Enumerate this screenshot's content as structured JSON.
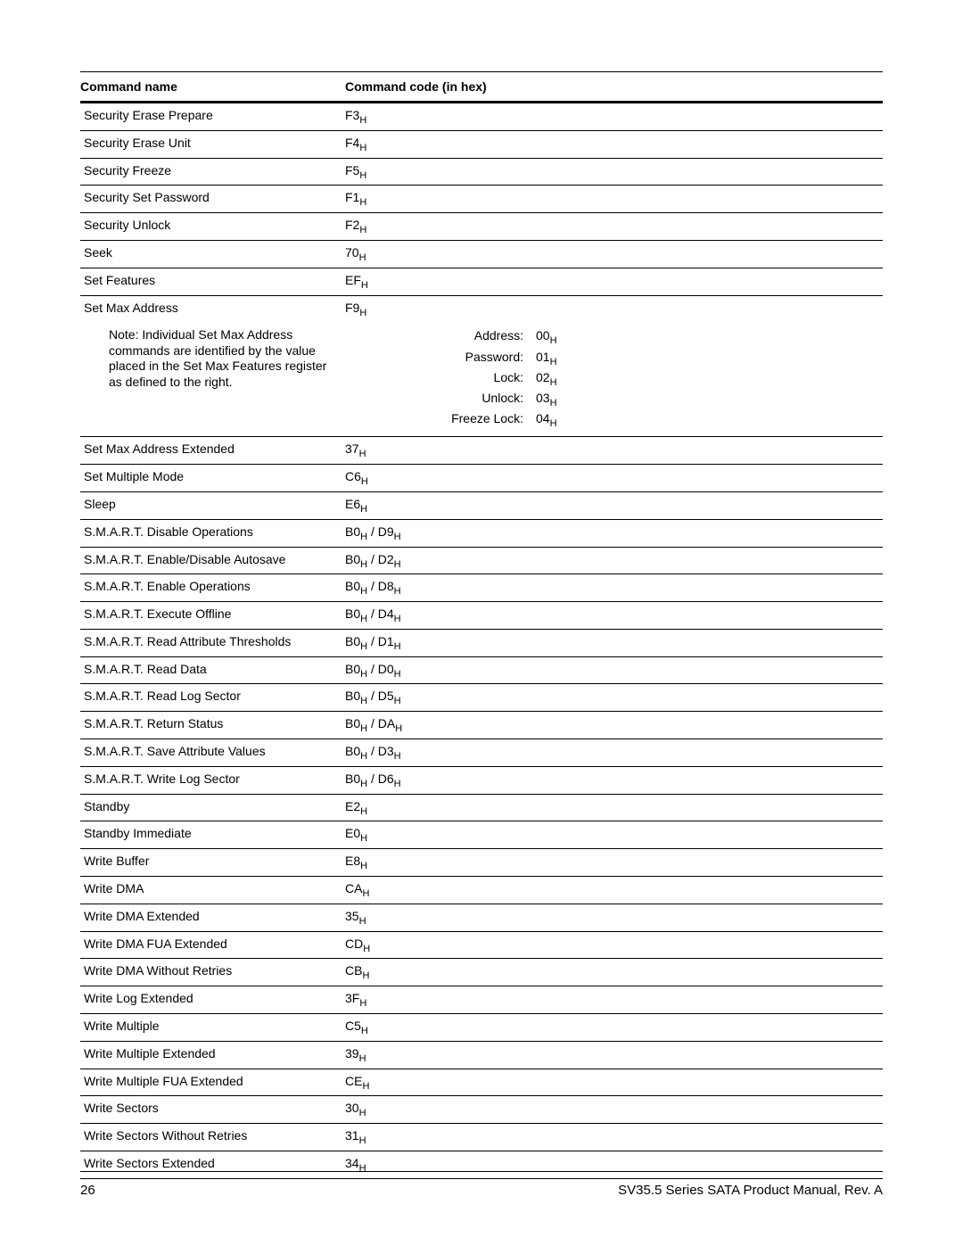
{
  "header": {
    "col1": "Command name",
    "col2": "Command code (in hex)"
  },
  "rows": [
    {
      "name": "Security Erase Prepare",
      "code": "F3"
    },
    {
      "name": "Security Erase Unit",
      "code": "F4"
    },
    {
      "name": "Security Freeze",
      "code": "F5"
    },
    {
      "name": "Security Set Password",
      "code": "F1"
    },
    {
      "name": "Security Unlock",
      "code": "F2"
    },
    {
      "name": "Seek",
      "code": "70"
    },
    {
      "name": "Set Features",
      "code": "EF"
    },
    {
      "name": "Set Max Address",
      "code": "F9",
      "hasNote": true
    }
  ],
  "note": {
    "text": "Note: Individual Set Max Address commands are identified by the value placed in the Set Max Features register as defined to the right.",
    "lines": [
      {
        "label": "Address:",
        "val": "00"
      },
      {
        "label": "Password:",
        "val": "01"
      },
      {
        "label": "Lock:",
        "val": "02"
      },
      {
        "label": "Unlock:",
        "val": "03"
      },
      {
        "label": "Freeze Lock:",
        "val": "04"
      }
    ]
  },
  "rows2": [
    {
      "name": "Set Max Address Extended",
      "code": "37"
    },
    {
      "name": "Set Multiple Mode",
      "code": "C6"
    },
    {
      "name": "Sleep",
      "code": "E6"
    },
    {
      "name": "S.M.A.R.T. Disable Operations",
      "code2": [
        "B0",
        "D9"
      ]
    },
    {
      "name": "S.M.A.R.T. Enable/Disable Autosave",
      "code2": [
        "B0",
        "D2"
      ]
    },
    {
      "name": "S.M.A.R.T. Enable Operations",
      "code2": [
        "B0",
        "D8"
      ]
    },
    {
      "name": "S.M.A.R.T. Execute Offline",
      "code2": [
        "B0",
        "D4"
      ]
    },
    {
      "name": "S.M.A.R.T. Read Attribute Thresholds",
      "code2": [
        "B0",
        "D1"
      ]
    },
    {
      "name": "S.M.A.R.T. Read Data",
      "code2": [
        "B0",
        "D0"
      ]
    },
    {
      "name": "S.M.A.R.T. Read Log Sector",
      "code2": [
        "B0",
        "D5"
      ]
    },
    {
      "name": "S.M.A.R.T. Return Status",
      "code2": [
        "B0",
        "DA"
      ]
    },
    {
      "name": "S.M.A.R.T. Save Attribute Values",
      "code2": [
        "B0",
        "D3"
      ]
    },
    {
      "name": "S.M.A.R.T. Write Log Sector",
      "code2": [
        "B0",
        "D6"
      ]
    },
    {
      "name": "Standby",
      "code": "E2"
    },
    {
      "name": "Standby Immediate",
      "code": "E0"
    },
    {
      "name": "Write Buffer",
      "code": "E8"
    },
    {
      "name": "Write DMA",
      "code": "CA"
    },
    {
      "name": "Write DMA Extended",
      "code": "35"
    },
    {
      "name": "Write DMA FUA Extended",
      "code": "CD"
    },
    {
      "name": "Write DMA Without Retries",
      "code": "CB"
    },
    {
      "name": "Write Log Extended",
      "code": "3F"
    },
    {
      "name": "Write Multiple",
      "code": "C5"
    },
    {
      "name": "Write Multiple Extended",
      "code": "39"
    },
    {
      "name": "Write Multiple FUA Extended",
      "code": "CE"
    },
    {
      "name": "Write Sectors",
      "code": "30"
    },
    {
      "name": "Write Sectors Without Retries",
      "code": "31"
    },
    {
      "name": "Write Sectors Extended",
      "code": "34"
    }
  ],
  "footer": {
    "page": "26",
    "title": "SV35.5 Series SATA Product Manual, Rev. A"
  }
}
